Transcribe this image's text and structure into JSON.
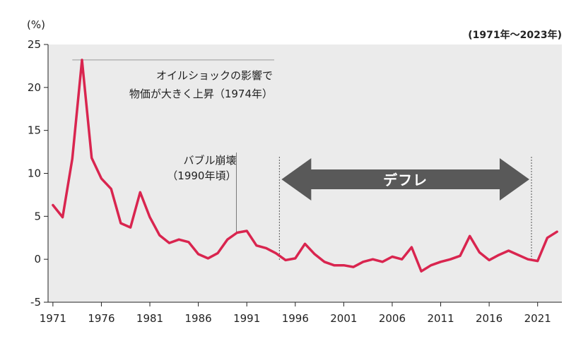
{
  "chart_data": {
    "type": "line",
    "unit_label": "(%)",
    "range_label": "(1971年〜2023年)",
    "x": [
      1971,
      1972,
      1973,
      1974,
      1975,
      1976,
      1977,
      1978,
      1979,
      1980,
      1981,
      1982,
      1983,
      1984,
      1985,
      1986,
      1987,
      1988,
      1989,
      1990,
      1991,
      1992,
      1993,
      1994,
      1995,
      1996,
      1997,
      1998,
      1999,
      2000,
      2001,
      2002,
      2003,
      2004,
      2005,
      2006,
      2007,
      2008,
      2009,
      2010,
      2011,
      2012,
      2013,
      2014,
      2015,
      2016,
      2017,
      2018,
      2019,
      2020,
      2021,
      2022,
      2023
    ],
    "series": [
      {
        "values": [
          6.3,
          4.9,
          11.7,
          23.2,
          11.8,
          9.4,
          8.2,
          4.2,
          3.7,
          7.8,
          4.9,
          2.8,
          1.9,
          2.3,
          2.0,
          0.6,
          0.1,
          0.7,
          2.3,
          3.1,
          3.3,
          1.6,
          1.3,
          0.7,
          -0.1,
          0.1,
          1.8,
          0.6,
          -0.3,
          -0.7,
          -0.7,
          -0.9,
          -0.3,
          0.0,
          -0.3,
          0.3,
          0.0,
          1.4,
          -1.4,
          -0.7,
          -0.3,
          0.0,
          0.4,
          2.7,
          0.8,
          -0.1,
          0.5,
          1.0,
          0.5,
          0.0,
          -0.2,
          2.5,
          3.2
        ],
        "color": "#d9254f"
      }
    ],
    "x_ticks": [
      "1971",
      "1976",
      "1981",
      "1986",
      "1991",
      "1996",
      "2001",
      "2006",
      "2011",
      "2016",
      "2021"
    ],
    "y_ticks": [
      "25",
      "20",
      "15",
      "10",
      "5",
      "0",
      "-5"
    ],
    "ylim": [
      -5,
      25
    ],
    "xlim": [
      1970.5,
      2023.5
    ],
    "annotations": {
      "oil_shock": {
        "lines": [
          "オイルショックの影響で",
          "物価が大きく上昇（1974年）"
        ],
        "year": 1973,
        "value": 23.2
      },
      "bubble": {
        "lines": [
          "バブル崩壊",
          "（1990年頃）"
        ],
        "year": 1990
      },
      "deflation": {
        "label": "デフレ",
        "start": 1994,
        "end": 2020
      }
    },
    "colors": {
      "line": "#d9254f",
      "plot_bg": "#ebebeb",
      "arrow": "#595959"
    }
  }
}
